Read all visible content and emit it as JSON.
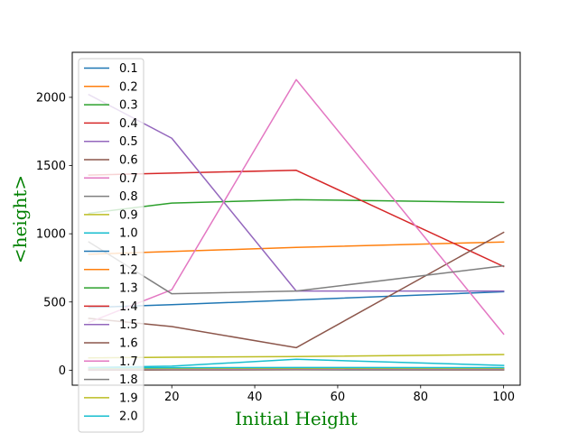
{
  "chart_data": {
    "type": "line",
    "title": "",
    "xlabel": "Initial Height",
    "ylabel": "<height>",
    "label_color": "#008000",
    "xlim": [
      -4,
      104
    ],
    "ylim": [
      -110,
      2330
    ],
    "xticks": [
      20,
      40,
      60,
      80,
      100
    ],
    "yticks": [
      0,
      500,
      1000,
      1500,
      2000
    ],
    "grid": false,
    "legend_position": "upper-left",
    "series": [
      {
        "name": "0.1",
        "color": "#1f77b4",
        "x": [
          0,
          20,
          50,
          100
        ],
        "y": [
          0,
          2,
          3,
          2
        ]
      },
      {
        "name": "0.2",
        "color": "#ff7f0e",
        "x": [
          0,
          20,
          50,
          100
        ],
        "y": [
          2,
          3,
          4,
          3
        ]
      },
      {
        "name": "0.3",
        "color": "#2ca02c",
        "x": [
          0,
          20,
          50,
          100
        ],
        "y": [
          5,
          5,
          6,
          5
        ]
      },
      {
        "name": "0.4",
        "color": "#d62728",
        "x": [
          0,
          20,
          50,
          100
        ],
        "y": [
          8,
          8,
          9,
          8
        ]
      },
      {
        "name": "0.5",
        "color": "#9467bd",
        "x": [
          0,
          20,
          50,
          100
        ],
        "y": [
          12,
          11,
          13,
          12
        ]
      },
      {
        "name": "0.6",
        "color": "#8c564b",
        "x": [
          0,
          20,
          50,
          100
        ],
        "y": [
          3,
          4,
          5,
          4
        ]
      },
      {
        "name": "0.7",
        "color": "#e377c2",
        "x": [
          0,
          20,
          50,
          100
        ],
        "y": [
          6,
          7,
          8,
          7
        ]
      },
      {
        "name": "0.8",
        "color": "#7f7f7f",
        "x": [
          0,
          20,
          50,
          100
        ],
        "y": [
          9,
          10,
          11,
          10
        ]
      },
      {
        "name": "0.9",
        "color": "#bcbd22",
        "x": [
          0,
          20,
          50,
          100
        ],
        "y": [
          14,
          13,
          15,
          14
        ]
      },
      {
        "name": "1.0",
        "color": "#17becf",
        "x": [
          0,
          20,
          50,
          100
        ],
        "y": [
          18,
          18,
          20,
          19
        ]
      },
      {
        "name": "1.1",
        "color": "#1f77b4",
        "x": [
          0,
          20,
          50,
          100
        ],
        "y": [
          460,
          480,
          515,
          575
        ]
      },
      {
        "name": "1.2",
        "color": "#ff7f0e",
        "x": [
          0,
          20,
          50,
          100
        ],
        "y": [
          850,
          870,
          900,
          940
        ]
      },
      {
        "name": "1.3",
        "color": "#2ca02c",
        "x": [
          0,
          20,
          50,
          100
        ],
        "y": [
          1150,
          1225,
          1250,
          1230
        ]
      },
      {
        "name": "1.4",
        "color": "#d62728",
        "x": [
          0,
          20,
          50,
          100
        ],
        "y": [
          1430,
          1445,
          1465,
          760
        ]
      },
      {
        "name": "1.5",
        "color": "#9467bd",
        "x": [
          0,
          20,
          50,
          100
        ],
        "y": [
          2020,
          1700,
          580,
          580
        ]
      },
      {
        "name": "1.6",
        "color": "#8c564b",
        "x": [
          0,
          20,
          50,
          100
        ],
        "y": [
          380,
          320,
          165,
          1010
        ]
      },
      {
        "name": "1.7",
        "color": "#e377c2",
        "x": [
          0,
          20,
          50,
          100
        ],
        "y": [
          350,
          590,
          2130,
          265
        ]
      },
      {
        "name": "1.8",
        "color": "#7f7f7f",
        "x": [
          0,
          20,
          50,
          100
        ],
        "y": [
          940,
          560,
          580,
          765
        ]
      },
      {
        "name": "1.9",
        "color": "#bcbd22",
        "x": [
          0,
          20,
          50,
          100
        ],
        "y": [
          90,
          95,
          100,
          115
        ]
      },
      {
        "name": "2.0",
        "color": "#17becf",
        "x": [
          0,
          20,
          50,
          100
        ],
        "y": [
          20,
          30,
          80,
          35
        ]
      }
    ]
  }
}
